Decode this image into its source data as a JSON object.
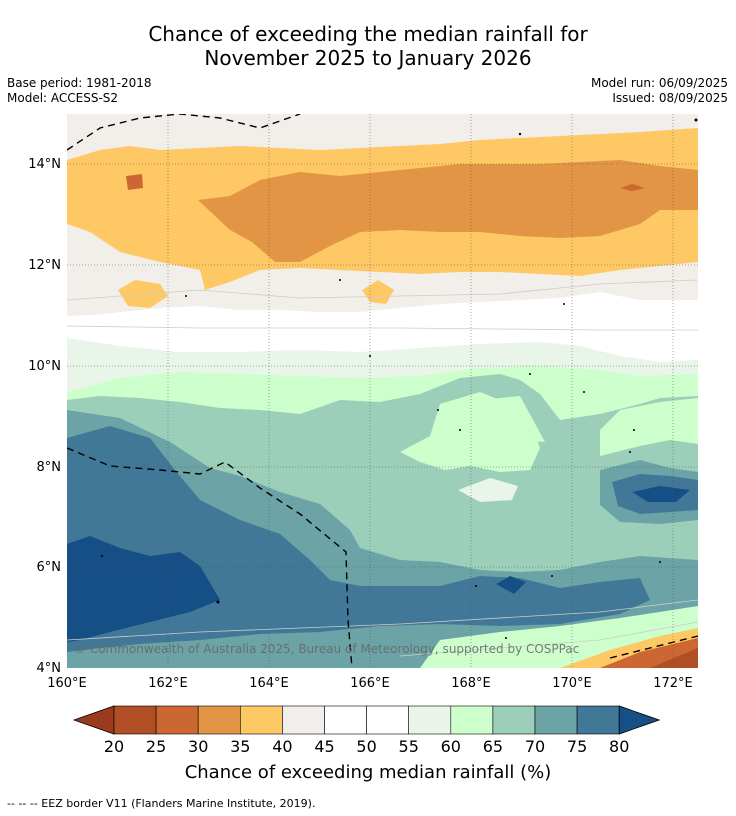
{
  "title": {
    "line1": "Chance of exceeding the median rainfall for",
    "line2": "November 2025 to January 2026"
  },
  "meta": {
    "base_period": "Base period: 1981-2018",
    "model": "Model: ACCESS-S2",
    "model_run": "Model run: 06/09/2025",
    "issued": "Issued: 08/09/2025"
  },
  "map": {
    "lon_range": [
      160,
      172.5
    ],
    "lat_range": [
      4,
      15
    ],
    "x_ticks": [
      "160°E",
      "162°E",
      "164°E",
      "166°E",
      "168°E",
      "170°E",
      "172°E"
    ],
    "y_ticks": [
      "14°N",
      "12°N",
      "10°N",
      "8°N",
      "6°N",
      "4°N"
    ],
    "copyright": "© Commonwealth of Australia 2025, Bureau of Meteorology, supported by COSPPac",
    "gridlines": true
  },
  "colorbar": {
    "title": "Chance of exceeding median rainfall (%)",
    "labels": [
      "20",
      "25",
      "30",
      "35",
      "40",
      "45",
      "50",
      "55",
      "60",
      "65",
      "70",
      "75",
      "80"
    ],
    "colors": [
      "#9c3a1e",
      "#b04e25",
      "#cc6633",
      "#e29545",
      "#fec965",
      "#f2eee9",
      "#ffffff",
      "#ffffff",
      "#e8f5e8",
      "#ccffcc",
      "#9ccfb9",
      "#6ba3a6",
      "#427897",
      "#154f86"
    ]
  },
  "footer": {
    "legend": "--  --  -- EEZ border V11 (Flanders Marine Institute, 2019)."
  }
}
